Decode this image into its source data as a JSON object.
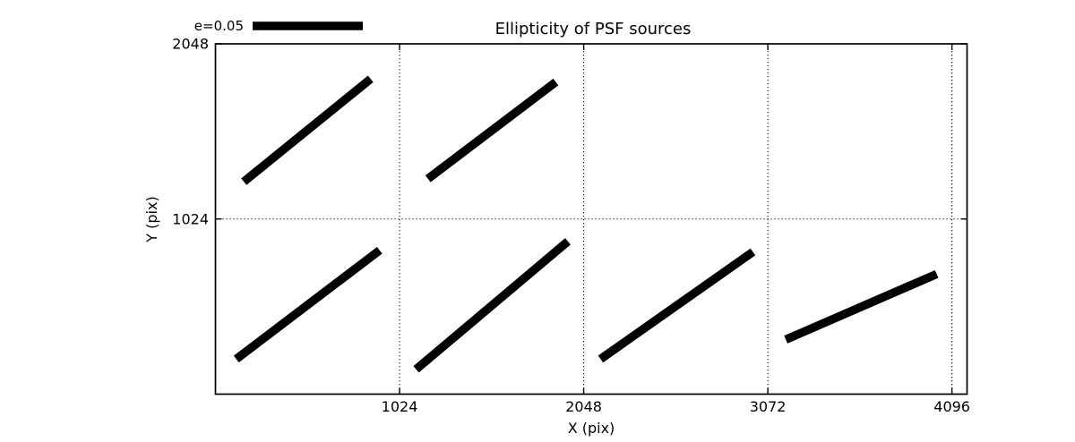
{
  "figure": {
    "background": "#ffffff",
    "ink": "#000000"
  },
  "legend": {
    "label": "e=0.05"
  },
  "chart_data": {
    "type": "line",
    "subtype": "psf-ellipticity-whisker-plot",
    "title": "Ellipticity of PSF sources",
    "xlabel": "X (pix)",
    "ylabel": "Y (pix)",
    "xlim": [
      0,
      4180
    ],
    "ylim": [
      0,
      2048
    ],
    "xticks": [
      1024,
      2048,
      3072,
      4096
    ],
    "yticks": [
      1024,
      2048
    ],
    "grid": true,
    "grid_style": "dotted",
    "legend": {
      "label": "e=0.05",
      "position": "upper-left-outside"
    },
    "segments": [
      {
        "x1": 158,
        "y1": 1242,
        "x2": 863,
        "y2": 1843
      },
      {
        "x1": 1182,
        "y1": 1259,
        "x2": 1893,
        "y2": 1825
      },
      {
        "x1": 116,
        "y1": 205,
        "x2": 913,
        "y2": 841
      },
      {
        "x1": 1116,
        "y1": 145,
        "x2": 1960,
        "y2": 893
      },
      {
        "x1": 2142,
        "y1": 205,
        "x2": 2989,
        "y2": 832
      },
      {
        "x1": 3172,
        "y1": 319,
        "x2": 4011,
        "y2": 702
      }
    ]
  }
}
